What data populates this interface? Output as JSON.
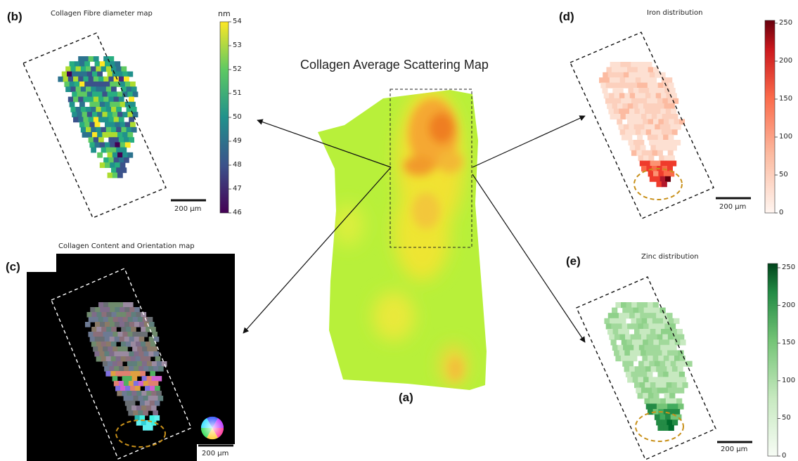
{
  "panels": {
    "a": {
      "label": "(a)",
      "title": "Collagen Average Scattering Map"
    },
    "b": {
      "label": "(b)",
      "title": "Collagen Fibre diameter map",
      "scalebar": "200 µm",
      "colorbar": {
        "unit": "nm",
        "ticks": [
          "54",
          "53",
          "52",
          "51",
          "50",
          "49",
          "48",
          "47",
          "46"
        ]
      }
    },
    "c": {
      "label": "(c)",
      "title": "Collagen Content and Orientation map",
      "scalebar": "200 µm"
    },
    "d": {
      "label": "(d)",
      "title": "Iron distribution",
      "scalebar": "200 µm",
      "colorbar": {
        "ticks": [
          "250",
          "200",
          "150",
          "100",
          "50",
          "0"
        ]
      }
    },
    "e": {
      "label": "(e)",
      "title": "Zinc distribution",
      "scalebar": "200 µm",
      "colorbar": {
        "ticks": [
          "250",
          "200",
          "150",
          "100",
          "50",
          "0"
        ]
      }
    }
  },
  "colors": {
    "diameter_low": "#3b0f70",
    "diameter_high": "#fde725",
    "iron_high": "#67000d",
    "zinc_high": "#00441b",
    "highlight_ellipse": "#c8901a"
  }
}
